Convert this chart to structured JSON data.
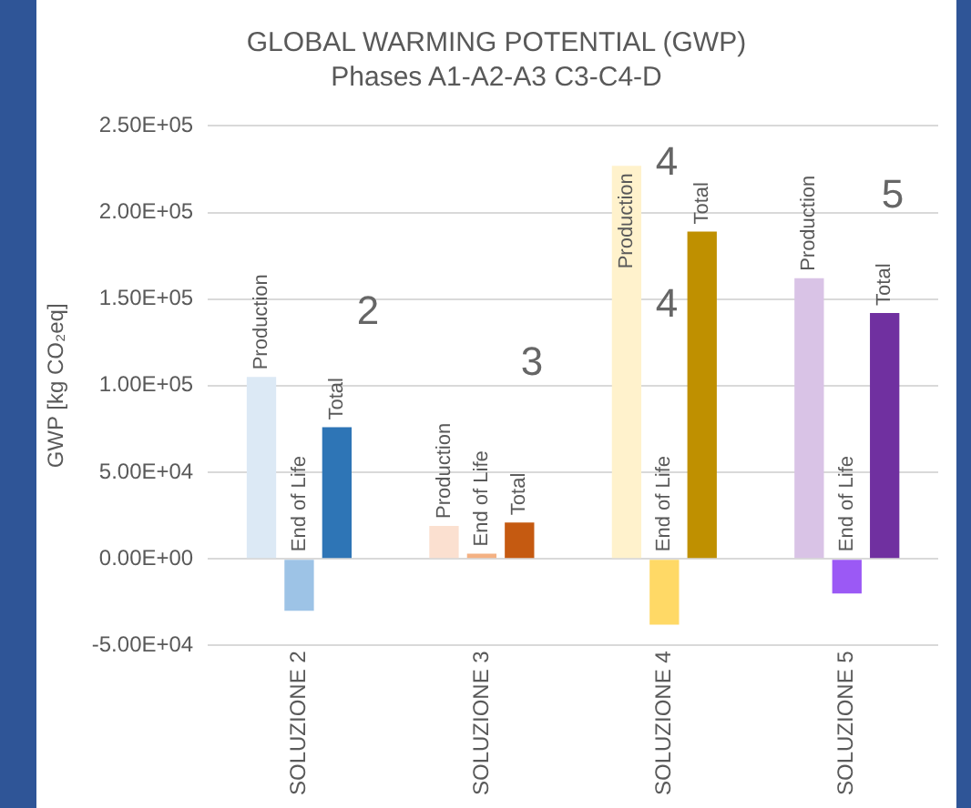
{
  "chart_data": {
    "type": "bar",
    "title": "GLOBAL WARMING POTENTIAL (GWP)",
    "subtitle": "Phases A1-A2-A3 C3-C4-D",
    "ylabel": "GWP [kg CO₂eq]",
    "categories": [
      "SOLUZIONE 2",
      "SOLUZIONE 3",
      "SOLUZIONE 4",
      "SOLUZIONE 5"
    ],
    "series": [
      {
        "name": "Production",
        "colors": [
          "#dce9f5",
          "#fbe0d0",
          "#fff2cc",
          "#d9c3e6"
        ],
        "values": [
          105000,
          19000,
          227000,
          162000
        ]
      },
      {
        "name": "End of Life",
        "colors": [
          "#9dc3e6",
          "#f4b183",
          "#ffd966",
          "#9b59f5"
        ],
        "values": [
          -30000,
          3000,
          -38000,
          -20000
        ]
      },
      {
        "name": "Total",
        "colors": [
          "#2e75b6",
          "#c55a11",
          "#bf9000",
          "#7030a0"
        ],
        "values": [
          76000,
          21000,
          189000,
          142000
        ]
      }
    ],
    "ylim": [
      -50000,
      250000
    ],
    "yticks": [
      {
        "value": -50000,
        "label": "-5.00E+04"
      },
      {
        "value": 0,
        "label": "0.00E+00"
      },
      {
        "value": 50000,
        "label": "5.00E+04"
      },
      {
        "value": 100000,
        "label": "1.00E+05"
      },
      {
        "value": 150000,
        "label": "1.50E+05"
      },
      {
        "value": 200000,
        "label": "2.00E+05"
      },
      {
        "value": 250000,
        "label": "2.50E+05"
      }
    ],
    "grid": "y",
    "legend": false,
    "annotations": [
      "2",
      "3",
      "4",
      "4",
      "5"
    ]
  }
}
